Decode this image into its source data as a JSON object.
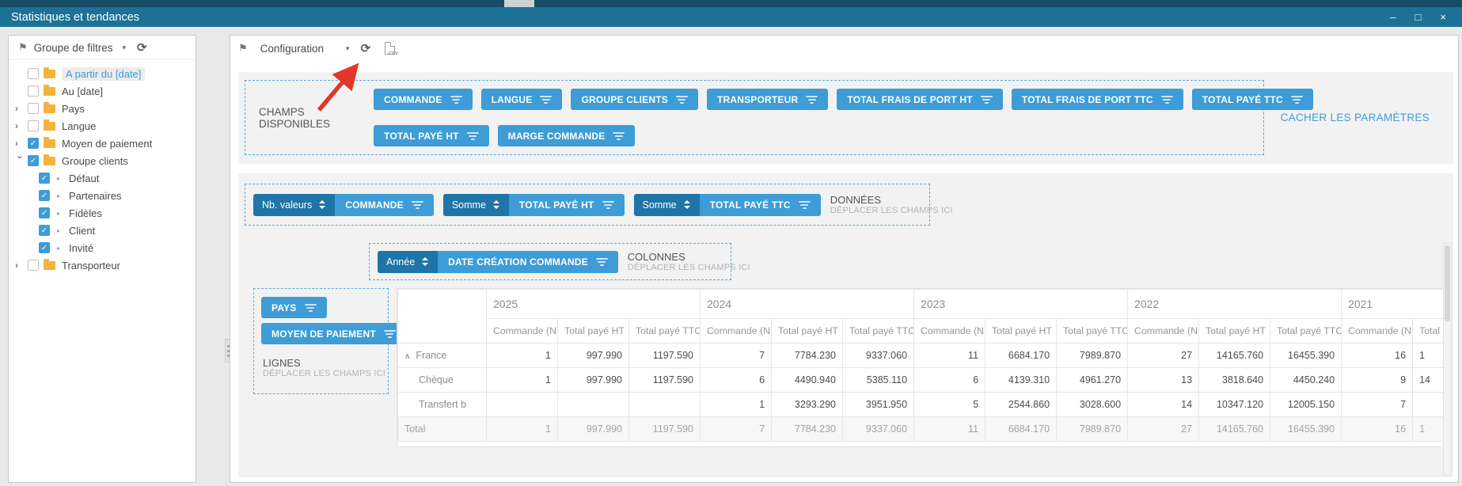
{
  "window": {
    "title": "Statistiques et tendances",
    "controls": {
      "minimize": "–",
      "maximize": "□",
      "close": "×"
    }
  },
  "icons": {
    "flag": "⚑",
    "dropdown_caret": "▾",
    "refresh": "⟳",
    "csv_export": "csv-file",
    "filter": "filter-bars",
    "sort": "up-down-arrows",
    "collapse_row": "∧",
    "tree_expand": "›",
    "child_bullet": "▸",
    "check": "✓"
  },
  "colors": {
    "titlebar": "#1c7197",
    "accent": "#3e9cd6",
    "accent_dark": "#1f74a8",
    "folder": "#f3b33e",
    "annotation_arrow": "#e0372c",
    "link": "#3e9cd6"
  },
  "sidebar": {
    "header": {
      "label": "Groupe de filtres"
    },
    "tree": [
      {
        "label": "A partir du [date]",
        "level": 0,
        "expand": "none",
        "checked": false,
        "selected": true
      },
      {
        "label": "Au [date]",
        "level": 0,
        "expand": "none",
        "checked": false
      },
      {
        "label": "Pays",
        "level": 0,
        "expand": "collapsed",
        "checked": false
      },
      {
        "label": "Langue",
        "level": 0,
        "expand": "collapsed",
        "checked": false
      },
      {
        "label": "Moyen de paiement",
        "level": 0,
        "expand": "collapsed",
        "checked": true
      },
      {
        "label": "Groupe clients",
        "level": 0,
        "expand": "expanded",
        "checked": true
      },
      {
        "label": "Défaut",
        "level": 1,
        "checked": true
      },
      {
        "label": "Partenaires",
        "level": 1,
        "checked": true
      },
      {
        "label": "Fidèles",
        "level": 1,
        "checked": true
      },
      {
        "label": "Client",
        "level": 1,
        "checked": true
      },
      {
        "label": "Invité",
        "level": 1,
        "checked": true
      },
      {
        "label": "Transporteur",
        "level": 0,
        "expand": "collapsed",
        "checked": false
      }
    ]
  },
  "toolbar": {
    "label": "Configuration"
  },
  "params": {
    "available_label": "CHAMPS DISPONIBLES",
    "row1": [
      "COMMANDE",
      "LANGUE",
      "GROUPE CLIENTS",
      "TRANSPORTEUR",
      "TOTAL FRAIS DE PORT HT",
      "TOTAL FRAIS DE PORT TTC",
      "TOTAL PAYÉ TTC"
    ],
    "row2": [
      "TOTAL PAYÉ HT",
      "MARGE COMMANDE"
    ],
    "hide_link": "CACHER LES PARAMÈTRES"
  },
  "pivot": {
    "data_zone": {
      "title": "DONNÉES",
      "hint": "DÉPLACER LES CHAMPS ICI",
      "chips": [
        {
          "agg": "Nb. valeurs",
          "field": "COMMANDE"
        },
        {
          "agg": "Somme",
          "field": "TOTAL PAYÉ HT"
        },
        {
          "agg": "Somme",
          "field": "TOTAL PAYÉ TTC"
        }
      ]
    },
    "column_zone": {
      "title": "COLONNES",
      "hint": "DÉPLACER LES CHAMPS ICI",
      "chips": [
        {
          "agg": "Année",
          "field": "DATE CRÉATION COMMANDE"
        }
      ]
    },
    "row_zone": {
      "title": "LIGNES",
      "hint": "DÉPLACER LES CHAMPS ICI",
      "chips": [
        {
          "field": "PAYS"
        },
        {
          "field": "MOYEN DE PAIEMENT"
        }
      ]
    },
    "table": {
      "years": [
        "2025",
        "2024",
        "2023",
        "2022",
        "2021"
      ],
      "measures": [
        "Commande (N",
        "Total payé HT",
        "Total payé TTC"
      ],
      "rows": [
        {
          "label": "France",
          "type": "parent",
          "values": [
            "1",
            "997.990",
            "1197.590",
            "7",
            "7784.230",
            "9337.060",
            "11",
            "6684.170",
            "7989.870",
            "27",
            "14165.760",
            "16455.390",
            "16",
            "1"
          ]
        },
        {
          "label": "Chèque",
          "type": "child",
          "values": [
            "1",
            "997.990",
            "1197.590",
            "6",
            "4490.940",
            "5385.110",
            "6",
            "4139.310",
            "4961.270",
            "13",
            "3818.640",
            "4450.240",
            "9",
            "14"
          ]
        },
        {
          "label": "Transfert b",
          "type": "child",
          "values": [
            "",
            "",
            "",
            "1",
            "3293.290",
            "3951.950",
            "5",
            "2544.860",
            "3028.600",
            "14",
            "10347.120",
            "12005.150",
            "7",
            ""
          ]
        },
        {
          "label": "Total",
          "type": "total",
          "values": [
            "1",
            "997.990",
            "1197.590",
            "7",
            "7784.230",
            "9337.060",
            "11",
            "6684.170",
            "7989.870",
            "27",
            "14165.760",
            "16455.390",
            "16",
            "1"
          ]
        }
      ]
    }
  }
}
